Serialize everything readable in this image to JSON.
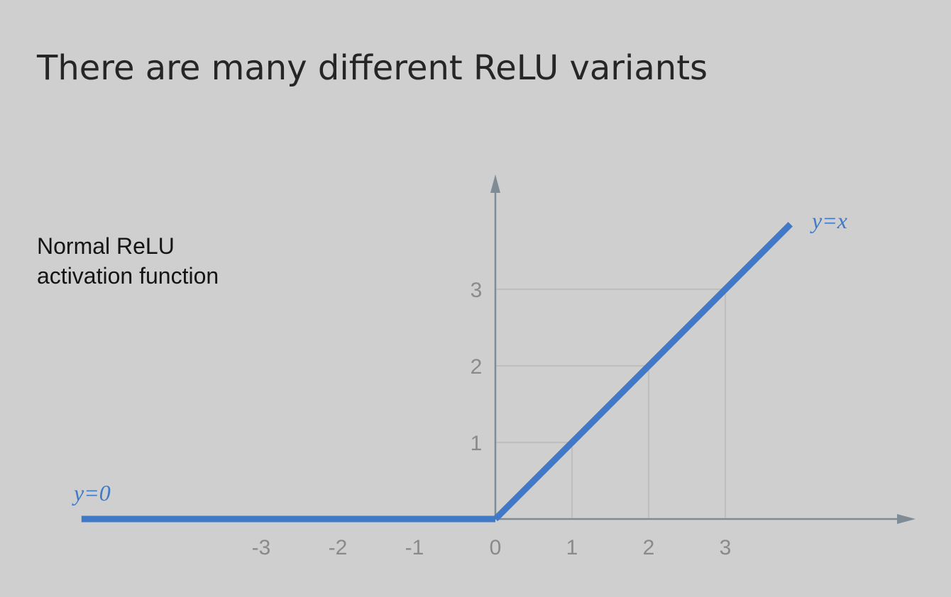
{
  "slide": {
    "title": "There are many different ReLU variants",
    "caption_line1": "Normal ReLU",
    "caption_line2": "activation function"
  },
  "chart_data": {
    "type": "line",
    "title": "",
    "xlabel": "",
    "ylabel": "",
    "xlim": [
      -5.4,
      5.2
    ],
    "ylim": [
      0,
      4.2
    ],
    "x_ticks": [
      -3,
      -2,
      -1,
      0,
      1,
      2,
      3
    ],
    "y_ticks": [
      1,
      2,
      3
    ],
    "grid": "dotted guides from axes to points (1,1), (2,2), (3,3)",
    "series": [
      {
        "name": "y=0",
        "x": [
          -5.4,
          0
        ],
        "y": [
          0,
          0
        ],
        "color": "#3f79c8"
      },
      {
        "name": "y=x",
        "x": [
          0,
          3.85
        ],
        "y": [
          0,
          3.85
        ],
        "color": "#3f79c8"
      }
    ],
    "axis_color": "#7f8c96"
  }
}
